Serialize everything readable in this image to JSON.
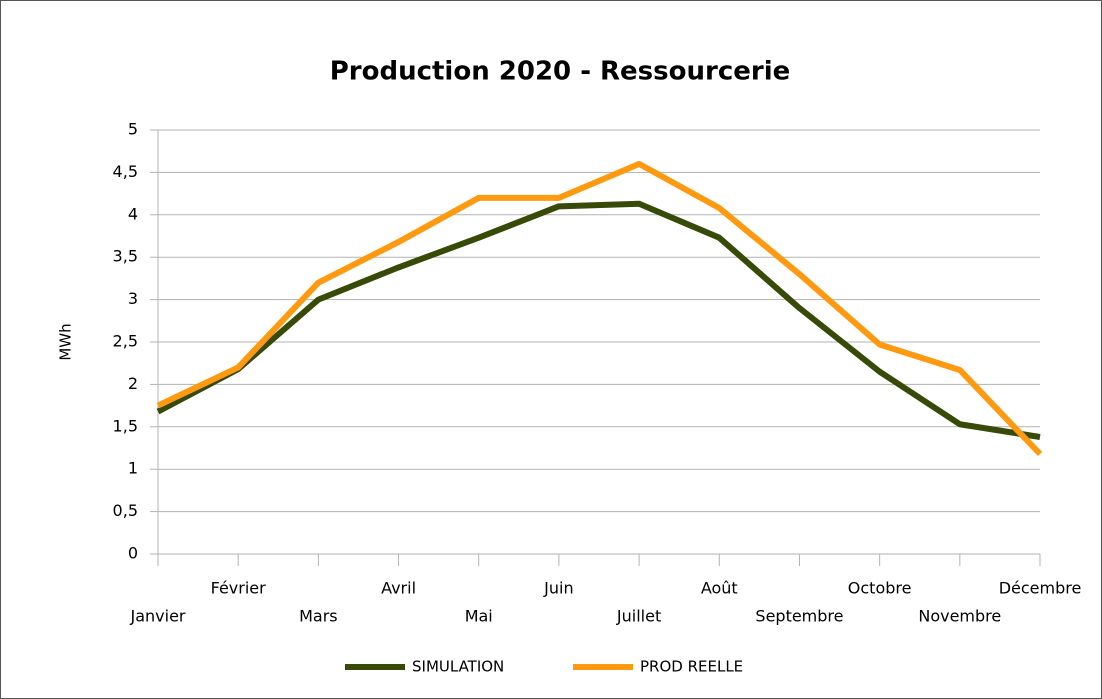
{
  "chart_data": {
    "type": "line",
    "title": "Production 2020 - Ressourcerie",
    "y_label": "MWh",
    "categories": [
      "Janvier",
      "Février",
      "Mars",
      "Avril",
      "Mai",
      "Juin",
      "Juillet",
      "Août",
      "Septembre",
      "Octobre",
      "Novembre",
      "Décembre"
    ],
    "series": [
      {
        "name": "SIMULATION",
        "color": "#374a08",
        "values": [
          1.68,
          2.18,
          3.0,
          3.38,
          3.73,
          4.1,
          4.13,
          3.73,
          2.9,
          2.15,
          1.53,
          1.38
        ]
      },
      {
        "name": "PROD REELLE",
        "color": "#ff9a10",
        "values": [
          1.75,
          2.2,
          3.2,
          3.68,
          4.2,
          4.2,
          4.6,
          4.08,
          3.3,
          2.47,
          2.17,
          1.18
        ]
      }
    ],
    "ylim": [
      0,
      5
    ],
    "yticks": [
      0,
      {
        "value": 0.5,
        "label": "0,5"
      },
      1,
      {
        "value": 1.5,
        "label": "1,5"
      },
      2,
      {
        "value": 2.5,
        "label": "2,5"
      },
      3,
      {
        "value": 3.5,
        "label": "3,5"
      },
      4,
      {
        "value": 4.5,
        "label": "4,5"
      },
      5
    ],
    "grid": true,
    "legend": "bottom"
  }
}
